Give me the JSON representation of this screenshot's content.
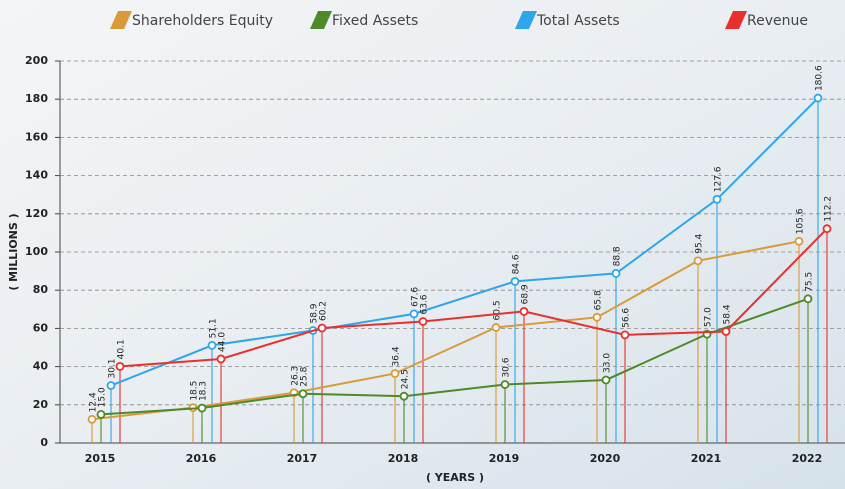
{
  "chart_data": {
    "type": "line",
    "categories": [
      "2015",
      "2016",
      "2017",
      "2018",
      "2019",
      "2020",
      "2021",
      "2022"
    ],
    "series": [
      {
        "name": "Shareholders Equity",
        "color": "#d99a3a",
        "values": [
          12.4,
          18.5,
          26.3,
          36.4,
          60.5,
          65.8,
          95.4,
          105.6
        ],
        "value_labels": [
          "12.4",
          "18.5",
          "26.3",
          "36.4",
          "60.5",
          "65.8",
          "95.4",
          "105.6"
        ]
      },
      {
        "name": "Fixed Assets",
        "color": "#4e8a2a",
        "values": [
          15.0,
          18.3,
          25.8,
          24.5,
          30.6,
          33.0,
          57.0,
          75.5
        ],
        "value_labels": [
          "15.0",
          "18.3",
          "25.8",
          "24.5",
          "30.6",
          "33.0",
          "57.0",
          "75.5"
        ]
      },
      {
        "name": "Total Assets",
        "color": "#2ea6e8",
        "values": [
          30.1,
          51.1,
          58.9,
          67.6,
          84.6,
          88.8,
          127.6,
          180.6
        ],
        "value_labels": [
          "30.1",
          "51.1",
          "58.9",
          "67.6",
          "84.6",
          "88.8",
          "127.6",
          "180.6"
        ]
      },
      {
        "name": "Revenue",
        "color": "#e8302e",
        "values": [
          40.1,
          44.0,
          60.2,
          63.6,
          68.9,
          56.6,
          58.4,
          112.2
        ],
        "value_labels": [
          "40.1",
          "44.0",
          "60.2",
          "63.6",
          "68.9",
          "56.6",
          "58.4",
          "112.2"
        ]
      }
    ],
    "ylabel": "( MILLIONS )",
    "xlabel": "( YEARS )",
    "ylim": [
      0,
      200
    ],
    "yticks": [
      0,
      20,
      40,
      60,
      80,
      100,
      120,
      140,
      160,
      180,
      200
    ],
    "grid": true
  }
}
